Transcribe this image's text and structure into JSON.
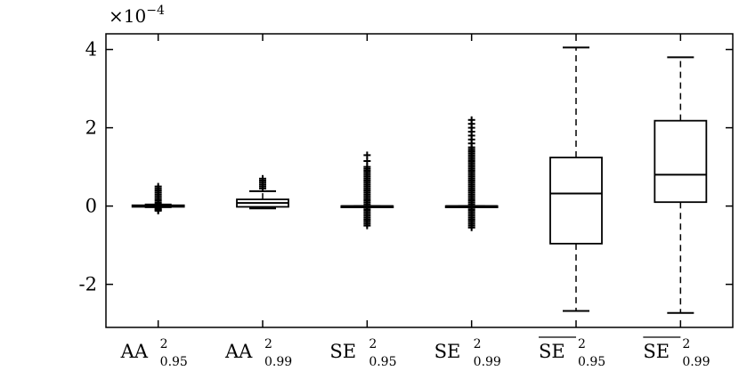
{
  "chart_data": {
    "type": "box",
    "title": "",
    "xlabel": "",
    "ylabel": "",
    "y_exponent_label": "×10",
    "y_exponent_power": "−4",
    "ylim": [
      -3.1,
      4.4
    ],
    "yticks": [
      {
        "value": -2,
        "label": "-2"
      },
      {
        "value": 0,
        "label": "0"
      },
      {
        "value": 2,
        "label": "2"
      },
      {
        "value": 4,
        "label": "4"
      }
    ],
    "grid": false,
    "categories": [
      {
        "base": "AA",
        "sup": "2",
        "sub": "0.95",
        "overline": false
      },
      {
        "base": "AA",
        "sup": "2",
        "sub": "0.99",
        "overline": false
      },
      {
        "base": "SE",
        "sup": "2",
        "sub": "0.95",
        "overline": false
      },
      {
        "base": "SE",
        "sup": "2",
        "sub": "0.99",
        "overline": false
      },
      {
        "base": "SE",
        "sup": "2",
        "sub": "0.95",
        "overline": true
      },
      {
        "base": "SE",
        "sup": "2",
        "sub": "0.99",
        "overline": true
      }
    ],
    "boxes": [
      {
        "whisker_low": -0.03,
        "q1": -0.02,
        "median": 0.0,
        "q3": 0.02,
        "whisker_high": 0.04,
        "outliers_low": [
          -0.05,
          -0.08,
          -0.1,
          -0.12
        ],
        "outliers_high": [
          0.06,
          0.1,
          0.15,
          0.2,
          0.25,
          0.3,
          0.35,
          0.4,
          0.45,
          0.5
        ]
      },
      {
        "whisker_low": -0.06,
        "q1": -0.02,
        "median": 0.08,
        "q3": 0.17,
        "whisker_high": 0.38,
        "outliers_low": [],
        "outliers_high": [
          0.45,
          0.5,
          0.55,
          0.6,
          0.65,
          0.7
        ]
      },
      {
        "whisker_low": 0.0,
        "q1": 0.0,
        "median": 0.0,
        "q3": 0.0,
        "whisker_high": 0.0,
        "outliers_low": [
          -0.05,
          -0.1,
          -0.15,
          -0.2,
          -0.25,
          -0.3,
          -0.35,
          -0.4,
          -0.45,
          -0.5
        ],
        "outliers_high": [
          0.05,
          0.1,
          0.15,
          0.2,
          0.25,
          0.3,
          0.35,
          0.4,
          0.45,
          0.5,
          0.55,
          0.6,
          0.65,
          0.7,
          0.75,
          0.8,
          0.85,
          0.9,
          0.95,
          1.0,
          1.15,
          1.3
        ]
      },
      {
        "whisker_low": 0.0,
        "q1": 0.0,
        "median": 0.0,
        "q3": 0.0,
        "whisker_high": 0.0,
        "outliers_low": [
          -0.05,
          -0.1,
          -0.15,
          -0.2,
          -0.25,
          -0.3,
          -0.35,
          -0.4,
          -0.45,
          -0.5,
          -0.55
        ],
        "outliers_high": [
          0.05,
          0.1,
          0.15,
          0.2,
          0.25,
          0.3,
          0.35,
          0.4,
          0.45,
          0.5,
          0.55,
          0.6,
          0.65,
          0.7,
          0.75,
          0.8,
          0.85,
          0.9,
          0.95,
          1.0,
          1.05,
          1.1,
          1.15,
          1.2,
          1.25,
          1.3,
          1.35,
          1.4,
          1.45,
          1.5,
          1.6,
          1.7,
          1.8,
          1.9,
          2.0,
          2.1,
          2.2
        ]
      },
      {
        "whisker_low": -2.68,
        "q1": -0.96,
        "median": 0.32,
        "q3": 1.24,
        "whisker_high": 4.05,
        "outliers_low": [],
        "outliers_high": []
      },
      {
        "whisker_low": -2.73,
        "q1": 0.1,
        "median": 0.8,
        "q3": 2.18,
        "whisker_high": 3.8,
        "outliers_low": [],
        "outliers_high": []
      }
    ]
  }
}
